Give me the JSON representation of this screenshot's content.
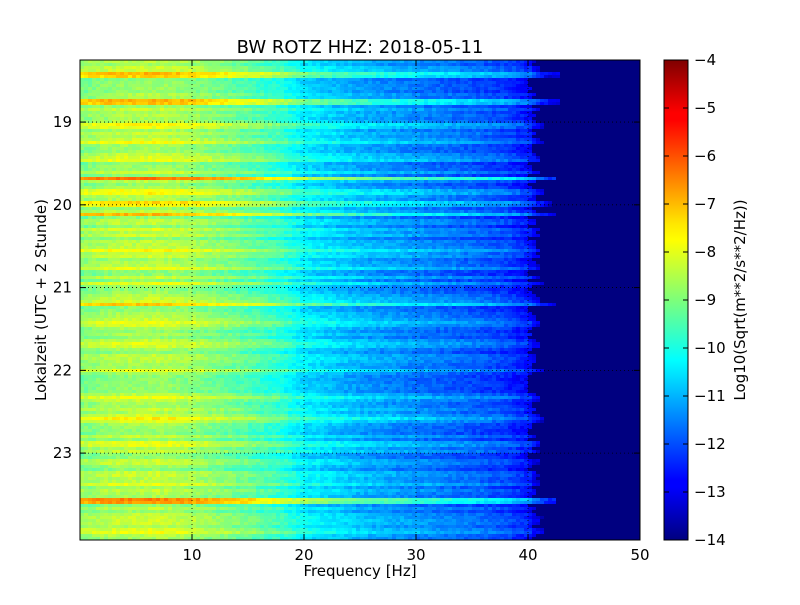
{
  "chart_data": {
    "type": "heatmap",
    "title": "BW ROTZ HHZ: 2018-05-11",
    "xlabel": "Frequency [Hz]",
    "ylabel": "Lokalzeit (UTC + 2 Stunde)",
    "xlim": [
      0,
      50
    ],
    "ylim": [
      18.25,
      24.05
    ],
    "y_inverted": true,
    "xticks": [
      10,
      20,
      30,
      40,
      50
    ],
    "xtick_labels": [
      "10",
      "20",
      "30",
      "40",
      "50"
    ],
    "yticks": [
      19,
      20,
      21,
      22,
      23
    ],
    "ytick_labels": [
      "19",
      "20",
      "21",
      "22",
      "23"
    ],
    "grid": true,
    "colormap": "jet",
    "colorbar": {
      "label": "Log10(Sqrt(m**2/s**2/Hz))",
      "range": [
        -14,
        -4
      ],
      "ticks": [
        -4,
        -5,
        -6,
        -7,
        -8,
        -9,
        -10,
        -11,
        -12,
        -13,
        -14
      ],
      "tick_labels": [
        "−4",
        "−5",
        "−6",
        "−7",
        "−8",
        "−9",
        "−10",
        "−11",
        "−12",
        "−13",
        "−14"
      ]
    },
    "value_profile_vs_frequency": {
      "frequency_hz": [
        0,
        3,
        7,
        10,
        15,
        18,
        20,
        25,
        30,
        35,
        38,
        40,
        41,
        42,
        50
      ],
      "log10_amplitude": [
        -8.9,
        -8.6,
        -8.5,
        -8.7,
        -9.3,
        -9.8,
        -10.4,
        -11.0,
        -11.4,
        -11.8,
        -12.1,
        -12.6,
        -13.4,
        -14.0,
        -14.0
      ]
    },
    "high_amplitude_bands": [
      {
        "time_h": 18.43,
        "offset": 1.6,
        "extent_hz": 43.0
      },
      {
        "time_h": 18.75,
        "offset": 1.8,
        "extent_hz": 43.0
      },
      {
        "time_h": 19.05,
        "offset": 0.5,
        "extent_hz": 41.5
      },
      {
        "time_h": 19.25,
        "offset": 0.6,
        "extent_hz": 41.5
      },
      {
        "time_h": 19.45,
        "offset": 0.4,
        "extent_hz": 41.0
      },
      {
        "time_h": 19.68,
        "offset": 1.9,
        "extent_hz": 42.5
      },
      {
        "time_h": 19.85,
        "offset": 0.6,
        "extent_hz": 41.5
      },
      {
        "time_h": 19.98,
        "offset": 1.1,
        "extent_hz": 42.0
      },
      {
        "time_h": 20.12,
        "offset": 1.9,
        "extent_hz": 42.5
      },
      {
        "time_h": 20.3,
        "offset": 0.4,
        "extent_hz": 41.0
      },
      {
        "time_h": 20.55,
        "offset": 0.6,
        "extent_hz": 41.0
      },
      {
        "time_h": 20.75,
        "offset": 0.5,
        "extent_hz": 41.0
      },
      {
        "time_h": 20.95,
        "offset": 0.9,
        "extent_hz": 41.5
      },
      {
        "time_h": 21.2,
        "offset": 1.2,
        "extent_hz": 42.5
      },
      {
        "time_h": 21.45,
        "offset": 0.5,
        "extent_hz": 41.0
      },
      {
        "time_h": 21.7,
        "offset": 0.4,
        "extent_hz": 41.0
      },
      {
        "time_h": 22.0,
        "offset": 0.8,
        "extent_hz": 41.5
      },
      {
        "time_h": 22.35,
        "offset": 0.5,
        "extent_hz": 41.0
      },
      {
        "time_h": 22.6,
        "offset": 0.7,
        "extent_hz": 41.5
      },
      {
        "time_h": 22.88,
        "offset": 0.6,
        "extent_hz": 41.0
      },
      {
        "time_h": 23.1,
        "offset": 0.5,
        "extent_hz": 41.0
      },
      {
        "time_h": 23.35,
        "offset": 0.4,
        "extent_hz": 41.0
      },
      {
        "time_h": 23.58,
        "offset": 1.8,
        "extent_hz": 42.5
      },
      {
        "time_h": 23.78,
        "offset": 0.6,
        "extent_hz": 41.5
      },
      {
        "time_h": 23.95,
        "offset": 0.8,
        "extent_hz": 41.5
      }
    ]
  }
}
